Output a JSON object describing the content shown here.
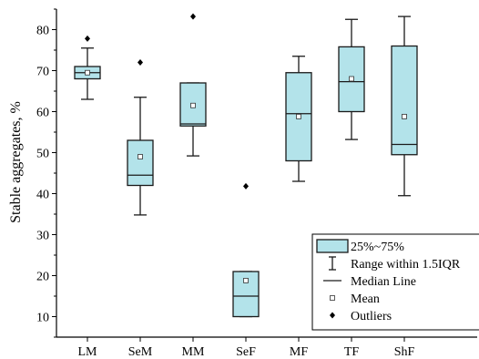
{
  "chart_data": {
    "type": "box",
    "title": "",
    "xlabel": "",
    "ylabel": "Stable aggregates, %",
    "ylim": [
      5,
      85
    ],
    "yticks": [
      10,
      20,
      30,
      40,
      50,
      60,
      70,
      80
    ],
    "grid": false,
    "legend_position": "bottom-right",
    "box_color": "#b3e3ea",
    "categories": [
      "LM",
      "SeM",
      "MM",
      "SeF",
      "MF",
      "TF",
      "ShF"
    ],
    "boxes": [
      {
        "category": "LM",
        "whisker_low": 63.0,
        "q1": 68.0,
        "median": 69.5,
        "q3": 71.0,
        "whisker_high": 75.5,
        "mean": 69.5,
        "outliers": [
          77.8
        ]
      },
      {
        "category": "SeM",
        "whisker_low": 34.8,
        "q1": 42.0,
        "median": 44.5,
        "q3": 53.0,
        "whisker_high": 63.5,
        "mean": 49.0,
        "outliers": [
          72.0
        ]
      },
      {
        "category": "MM",
        "whisker_low": 49.2,
        "q1": 56.5,
        "median": 57.0,
        "q3": 67.0,
        "whisker_high": 67.0,
        "mean": 61.5,
        "outliers": [
          83.2
        ]
      },
      {
        "category": "SeF",
        "whisker_low": 10.0,
        "q1": 10.0,
        "median": 15.0,
        "q3": 21.0,
        "whisker_high": 21.0,
        "mean": 18.8,
        "outliers": [
          41.8
        ]
      },
      {
        "category": "MF",
        "whisker_low": 43.0,
        "q1": 48.0,
        "median": 59.5,
        "q3": 69.5,
        "whisker_high": 73.5,
        "mean": 58.8,
        "outliers": []
      },
      {
        "category": "TF",
        "whisker_low": 53.2,
        "q1": 60.0,
        "median": 67.3,
        "q3": 75.8,
        "whisker_high": 82.5,
        "mean": 68.0,
        "outliers": []
      },
      {
        "category": "ShF",
        "whisker_low": 39.5,
        "q1": 49.5,
        "median": 52.0,
        "q3": 76.0,
        "whisker_high": 83.2,
        "mean": 58.8,
        "outliers": []
      }
    ],
    "legend": [
      {
        "symbol": "box",
        "label": "25%~75%"
      },
      {
        "symbol": "range",
        "label": "Range within 1.5IQR"
      },
      {
        "symbol": "median",
        "label": "Median Line"
      },
      {
        "symbol": "mean",
        "label": "Mean"
      },
      {
        "symbol": "outlier",
        "label": "Outliers"
      }
    ]
  }
}
